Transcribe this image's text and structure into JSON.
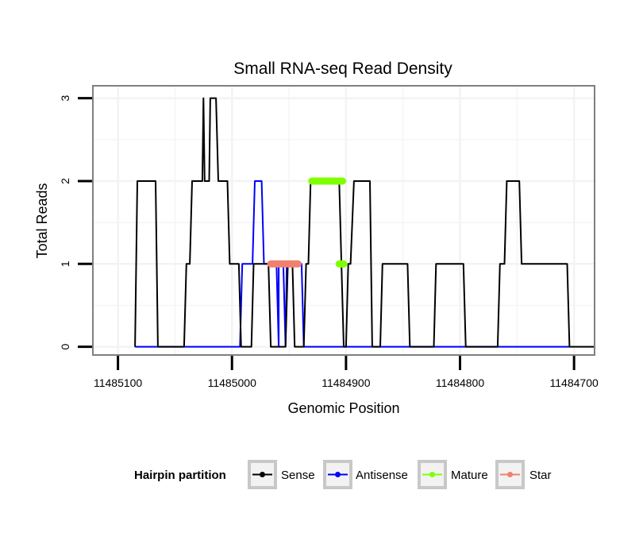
{
  "chart_data": {
    "type": "line",
    "title": "Small RNA-seq Read Density",
    "xlabel": "Genomic Position",
    "ylabel": "Total Reads",
    "xlim": [
      11485122,
      11484682
    ],
    "ylim": [
      -0.1,
      3.15
    ],
    "x_ticks": [
      11485100,
      11485000,
      11484900,
      11484800,
      11484700
    ],
    "x_tick_labels": [
      "11485100",
      "11485000",
      "11484900",
      "11484800",
      "11484700"
    ],
    "y_ticks": [
      0,
      1,
      2,
      3
    ],
    "y_tick_labels": [
      "0",
      "1",
      "2",
      "3"
    ],
    "grid": true,
    "legend": {
      "title": "Hairpin partition",
      "position": "bottom",
      "entries": [
        {
          "name": "Sense",
          "color": "#000000"
        },
        {
          "name": "Antisense",
          "color": "#0000ff"
        },
        {
          "name": "Mature",
          "color": "#7fff00"
        },
        {
          "name": "Star",
          "color": "#f08070"
        }
      ]
    },
    "series": [
      {
        "name": "Sense",
        "color": "#000000",
        "points": [
          [
            11485085,
            0
          ],
          [
            11485083,
            2
          ],
          [
            11485067,
            2
          ],
          [
            11485065,
            0
          ],
          [
            11485042,
            0
          ],
          [
            11485040,
            1
          ],
          [
            11485037,
            1
          ],
          [
            11485035,
            2
          ],
          [
            11485026,
            2
          ],
          [
            11485025,
            3
          ],
          [
            11485024,
            2
          ],
          [
            11485020,
            2
          ],
          [
            11485019,
            3
          ],
          [
            11485014,
            3
          ],
          [
            11485012,
            2
          ],
          [
            11485004,
            2
          ],
          [
            11485002,
            1
          ],
          [
            11484994,
            1
          ],
          [
            11484992,
            0
          ],
          [
            11484983,
            0
          ],
          [
            11484981,
            1
          ],
          [
            11484969,
            1
          ],
          [
            11484968,
            1
          ],
          [
            11484966,
            0
          ],
          [
            11484953,
            0
          ],
          [
            11484951,
            1
          ],
          [
            11484949,
            1
          ],
          [
            11484947,
            1
          ],
          [
            11484945,
            0
          ],
          [
            11484937,
            0
          ],
          [
            11484935,
            1
          ],
          [
            11484933,
            1
          ],
          [
            11484931,
            2
          ],
          [
            11484906,
            2
          ],
          [
            11484904,
            1
          ],
          [
            11484902,
            0
          ],
          [
            11484900,
            0
          ],
          [
            11484898,
            1
          ],
          [
            11484896,
            1
          ],
          [
            11484893,
            2
          ],
          [
            11484879,
            2
          ],
          [
            11484877,
            0
          ],
          [
            11484870,
            0
          ],
          [
            11484868,
            1
          ],
          [
            11484846,
            1
          ],
          [
            11484844,
            0
          ],
          [
            11484823,
            0
          ],
          [
            11484821,
            1
          ],
          [
            11484797,
            1
          ],
          [
            11484795,
            0
          ],
          [
            11484767,
            0
          ],
          [
            11484765,
            1
          ],
          [
            11484761,
            1
          ],
          [
            11484759,
            2
          ],
          [
            11484748,
            2
          ],
          [
            11484746,
            1
          ],
          [
            11484706,
            1
          ],
          [
            11484704,
            0
          ],
          [
            11484682,
            0
          ]
        ]
      },
      {
        "name": "Antisense",
        "color": "#0000ff",
        "points": [
          [
            11485085,
            0
          ],
          [
            11484993,
            0
          ],
          [
            11484991,
            1
          ],
          [
            11484982,
            1
          ],
          [
            11484980,
            2
          ],
          [
            11484974,
            2
          ],
          [
            11484972,
            1
          ],
          [
            11484961,
            1
          ],
          [
            11484959,
            0
          ],
          [
            11484959,
            1
          ],
          [
            11484955,
            1
          ],
          [
            11484953,
            0
          ],
          [
            11484952,
            1
          ],
          [
            11484939,
            1
          ],
          [
            11484937,
            0
          ],
          [
            11484704,
            0
          ]
        ]
      },
      {
        "name": "Mature",
        "color": "#7fff00",
        "points": [
          [
            11484930,
            2
          ],
          [
            11484903,
            2
          ]
        ],
        "extra_points": [
          [
            11484906,
            1
          ],
          [
            11484902,
            1
          ]
        ]
      },
      {
        "name": "Star",
        "color": "#f08070",
        "points": [
          [
            11484966,
            1
          ],
          [
            11484942,
            1
          ]
        ]
      }
    ]
  }
}
